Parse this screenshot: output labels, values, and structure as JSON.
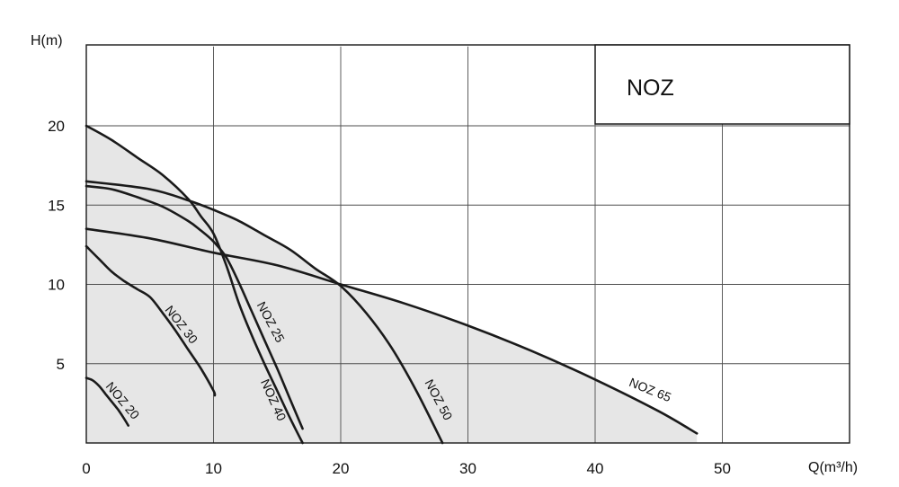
{
  "chart_data": {
    "type": "line",
    "title": "NOZ",
    "xlabel": "Q(m³/h)",
    "ylabel": "H(m)",
    "xlim": [
      0,
      60
    ],
    "ylim": [
      0,
      25
    ],
    "x_ticks": [
      "0",
      "10",
      "20",
      "30",
      "40",
      "50"
    ],
    "y_ticks": [
      "5",
      "10",
      "15",
      "20"
    ],
    "grid": true,
    "legend_position": "top-right",
    "shaded_envelope": true,
    "colors": {
      "curve": "#1a1a1a",
      "envelope": "#e6e6e6",
      "grid": "#4d4d4d",
      "legend_box": "#ffffff"
    },
    "series": [
      {
        "name": "NOZ 20",
        "x": [
          0,
          0.5,
          1,
          1.5,
          2,
          2.5,
          3,
          3.3
        ],
        "y": [
          4.1,
          3.95,
          3.6,
          3.1,
          2.6,
          2.1,
          1.5,
          1.1
        ]
      },
      {
        "name": "NOZ 30",
        "x": [
          0,
          1,
          2,
          3,
          4,
          5,
          6,
          7,
          8,
          9,
          10,
          10.1
        ],
        "y": [
          12.4,
          11.6,
          10.8,
          10.2,
          9.7,
          9.2,
          8.2,
          7.1,
          5.9,
          4.7,
          3.3,
          3.0
        ]
      },
      {
        "name": "NOZ 25",
        "x": [
          0,
          2,
          4,
          6,
          8,
          9,
          10,
          11,
          12,
          13,
          14,
          15,
          16,
          17
        ],
        "y": [
          16.2,
          16.0,
          15.5,
          14.9,
          14.0,
          13.4,
          12.7,
          11.7,
          10.1,
          8.3,
          6.5,
          4.7,
          2.8,
          0.9
        ]
      },
      {
        "name": "NOZ 40",
        "x": [
          0,
          2,
          4,
          6,
          8,
          9,
          10,
          11,
          12,
          13,
          14,
          15,
          16,
          17
        ],
        "y": [
          20.0,
          19.1,
          18.0,
          16.9,
          15.4,
          14.3,
          13.2,
          11.2,
          8.8,
          6.8,
          5.0,
          3.3,
          1.6,
          0.0
        ]
      },
      {
        "name": "NOZ 50",
        "x": [
          0,
          5,
          8,
          10,
          12,
          14,
          16,
          18,
          20,
          22,
          24,
          26,
          28
        ],
        "y": [
          16.5,
          16.0,
          15.3,
          14.7,
          14.0,
          13.1,
          12.2,
          11.0,
          9.9,
          8.2,
          6.0,
          3.2,
          0.0
        ]
      },
      {
        "name": "NOZ 65",
        "x": [
          0,
          5,
          10,
          15,
          20,
          25,
          30,
          35,
          40,
          45,
          48
        ],
        "y": [
          13.5,
          12.9,
          12.0,
          11.2,
          10.0,
          8.8,
          7.4,
          5.8,
          4.0,
          2.0,
          0.6
        ]
      }
    ],
    "curve_labels": [
      {
        "text": "NOZ 20",
        "x": 2.6,
        "y": 2.5,
        "angle": 50
      },
      {
        "text": "NOZ 30",
        "x": 7.2,
        "y": 7.3,
        "angle": 52
      },
      {
        "text": "NOZ 25",
        "x": 14.2,
        "y": 7.5,
        "angle": 62
      },
      {
        "text": "NOZ 40",
        "x": 14.4,
        "y": 2.6,
        "angle": 66
      },
      {
        "text": "NOZ 50",
        "x": 27.4,
        "y": 2.6,
        "angle": 62
      },
      {
        "text": "NOZ 65",
        "x": 44.2,
        "y": 3.1,
        "angle": 22
      }
    ]
  }
}
